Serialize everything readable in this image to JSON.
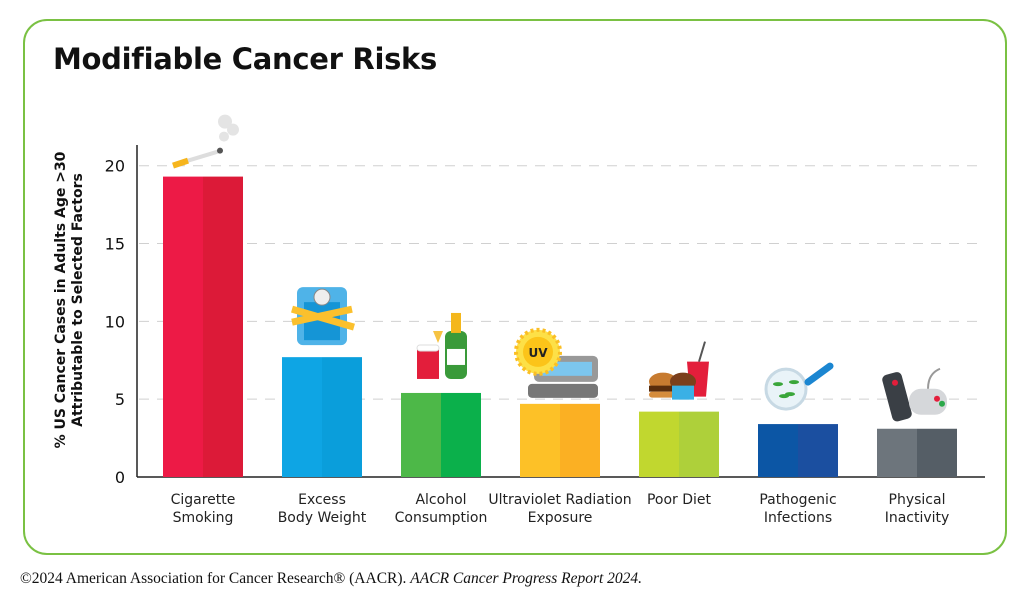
{
  "chart_data": {
    "type": "bar",
    "title": "Modifiable Cancer Risks",
    "ylabel": "% US Cancer Cases in Adults Age >30 Attributable to Selected Factors",
    "ylabel_lines": [
      "% US Cancer Cases in Adults Age >30",
      "Attributable to Selected Factors"
    ],
    "xlabel": "",
    "ylim": [
      0,
      20
    ],
    "yticks": [
      0,
      5,
      10,
      15,
      20
    ],
    "grid": "horizontal dashed",
    "categories": [
      [
        "Cigarette",
        "Smoking"
      ],
      [
        "Excess",
        "Body Weight"
      ],
      [
        "Alcohol",
        "Consumption"
      ],
      [
        "Ultraviolet Radiation",
        "Exposure"
      ],
      [
        "Poor Diet"
      ],
      [
        "Pathogenic",
        "Infections"
      ],
      [
        "Physical",
        "Inactivity"
      ]
    ],
    "values": [
      19.3,
      7.7,
      5.4,
      4.7,
      4.2,
      3.4,
      3.1
    ],
    "colors": [
      [
        "#ed1a46",
        "#dc1a38"
      ],
      [
        "#0ea5e4",
        "#0a9edb"
      ],
      [
        "#4db848",
        "#0bb04b"
      ],
      [
        "#fdc127",
        "#fbb023"
      ],
      [
        "#c1d72f",
        "#aed03a"
      ],
      [
        "#0c56a5",
        "#1b4fa0"
      ],
      [
        "#6d757c",
        "#555e66"
      ]
    ],
    "icons": [
      "cigarette-icon",
      "scale-tape-icon",
      "beer-champagne-icon",
      "uv-tanning-bed-icon",
      "burger-drink-cupcake-icon",
      "petri-dish-icon",
      "remote-gamepad-icon"
    ]
  },
  "icon_labels": {
    "uv": "UV"
  },
  "footer": {
    "plain": "©2024 American Association for Cancer Research® (AACR).",
    "italic": "AACR Cancer Progress Report 2024."
  },
  "frame_color": "#7ac143"
}
